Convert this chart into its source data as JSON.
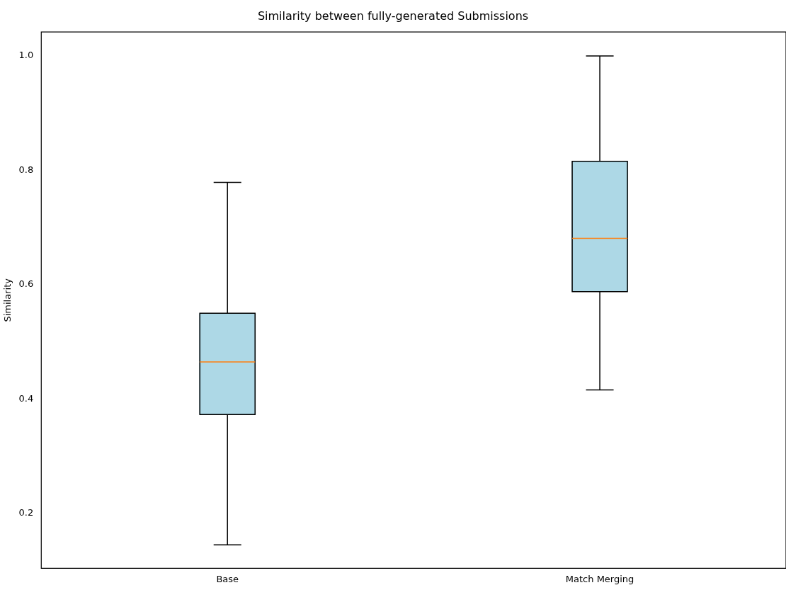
{
  "chart_data": {
    "type": "box",
    "title": "Similarity between fully-generated Submissions",
    "ylabel": "Similarity",
    "categories": [
      "Base",
      "Match Merging"
    ],
    "boxes": [
      {
        "low": 0.145,
        "q1": 0.373,
        "median": 0.465,
        "q3": 0.55,
        "high": 0.779
      },
      {
        "low": 0.416,
        "q1": 0.588,
        "median": 0.681,
        "q3": 0.816,
        "high": 1.0
      }
    ],
    "color": "#add8e6",
    "ylim": [
      0.104,
      1.042
    ],
    "yticks": [
      0.2,
      0.4,
      0.6,
      0.8,
      {
        "value": 1,
        "label": "1.0"
      }
    ]
  }
}
